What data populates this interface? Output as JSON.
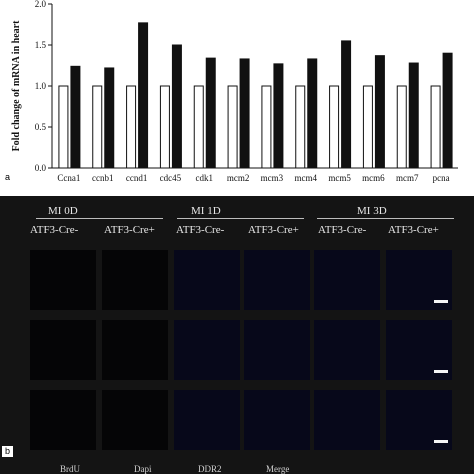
{
  "panel_a": {
    "tag": "a",
    "chart_data": {
      "type": "bar",
      "ylabel": "Fold change of mRNA in heart",
      "ylim": [
        0,
        2.0
      ],
      "yticks": [
        "0.0",
        "0.5",
        "1.0",
        "1.5",
        "2.0"
      ],
      "categories": [
        "Ccna1",
        "ccnb1",
        "ccnd1",
        "cdc45",
        "cdk1",
        "mcm2",
        "mcm3",
        "mcm4",
        "mcm5",
        "mcm6",
        "mcm7",
        "pcna"
      ],
      "series": [
        {
          "values": [
            1.0,
            1.0,
            1.0,
            1.0,
            1.0,
            1.0,
            1.0,
            1.0,
            1.0,
            1.0,
            1.0,
            1.0
          ],
          "color": "#ffffff"
        },
        {
          "values": [
            1.24,
            1.22,
            1.77,
            1.5,
            1.34,
            1.33,
            1.27,
            1.33,
            1.55,
            1.37,
            1.28,
            1.4
          ],
          "color": "#111111"
        }
      ]
    }
  },
  "panel_b": {
    "tag": "b",
    "timepoints": [
      "MI 0D",
      "MI 1D",
      "MI 3D"
    ],
    "groups": [
      "ATF3-Cre-",
      "ATF3-Cre+",
      "ATF3-Cre-",
      "ATF3-Cre+",
      "ATF3-Cre-",
      "ATF3-Cre+"
    ],
    "channels": [
      "BrdU",
      "Dapi",
      "DDR2",
      "Merge"
    ]
  }
}
